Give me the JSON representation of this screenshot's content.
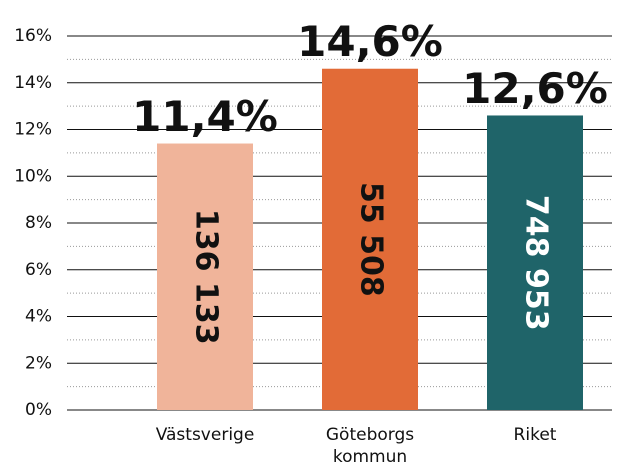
{
  "chart_data": {
    "type": "bar",
    "categories": [
      "Västsverige",
      "Göteborgs kommun",
      "Riket"
    ],
    "values": [
      11.4,
      14.6,
      12.6
    ],
    "value_labels": [
      "11,4%",
      "14,6%",
      "12,6%"
    ],
    "inner_labels": [
      "136 133",
      "55 508",
      "748 953"
    ],
    "colors": [
      "#f0b49a",
      "#e26b37",
      "#1f6469"
    ],
    "inner_label_colors": [
      "#111111",
      "#111111",
      "#ffffff"
    ],
    "ylim": [
      0,
      16
    ],
    "yticks": [
      {
        "value": 0,
        "label": "0%"
      },
      {
        "value": 2,
        "label": "2%"
      },
      {
        "value": 4,
        "label": "4%"
      },
      {
        "value": 6,
        "label": "6%"
      },
      {
        "value": 8,
        "label": "8%"
      },
      {
        "value": 10,
        "label": "10%"
      },
      {
        "value": 12,
        "label": "12%"
      },
      {
        "value": 14,
        "label": "14%"
      },
      {
        "value": 16,
        "label": "16%"
      }
    ],
    "minor_yticks": [
      1,
      3,
      5,
      7,
      9,
      11,
      13,
      15
    ],
    "grid": true
  }
}
